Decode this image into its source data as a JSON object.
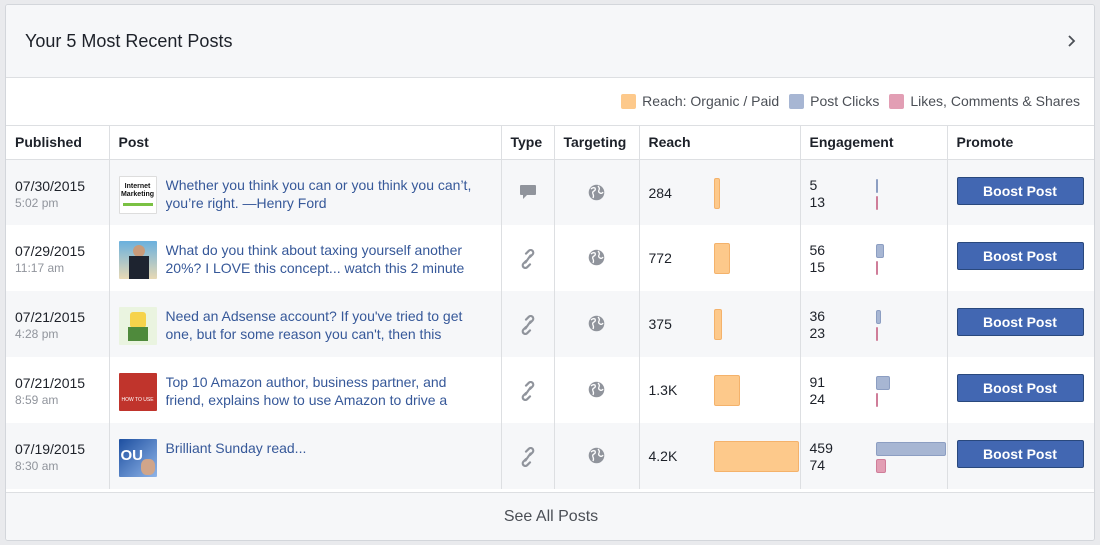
{
  "header": {
    "title": "Your 5 Most Recent Posts"
  },
  "legend": [
    {
      "label": "Reach: Organic / Paid",
      "color": "#fdc98b"
    },
    {
      "label": "Post Clicks",
      "color": "#a7b6d3"
    },
    {
      "label": "Likes, Comments & Shares",
      "color": "#e29eb4"
    }
  ],
  "columns": [
    "Published",
    "Post",
    "Type",
    "Targeting",
    "Reach",
    "Engagement",
    "Promote"
  ],
  "rows": [
    {
      "date": "07/30/2015",
      "time": "5:02 pm",
      "post": "Whether you think you can or you think you can’t, you’re right. —Henry Ford",
      "type": "status",
      "reach": "284",
      "clicks": "5",
      "likes": "13",
      "button": "Boost Post",
      "thumb_text": "Internet Marketing ...with Adam Booth"
    },
    {
      "date": "07/29/2015",
      "time": "11:17 am",
      "post": "What do you think about taxing yourself another 20%? I LOVE this concept... watch this 2 minute",
      "type": "link",
      "reach": "772",
      "clicks": "56",
      "likes": "15",
      "button": "Boost Post"
    },
    {
      "date": "07/21/2015",
      "time": "4:28 pm",
      "post": "Need an Adsense account? If you've tried to get one, but for some reason you can't, then this",
      "type": "link",
      "reach": "375",
      "clicks": "36",
      "likes": "23",
      "button": "Boost Post"
    },
    {
      "date": "07/21/2015",
      "time": "8:59 am",
      "post": "Top 10 Amazon author, business partner, and friend, explains how to use Amazon to drive a",
      "type": "link",
      "reach": "1.3K",
      "clicks": "91",
      "likes": "24",
      "button": "Boost Post",
      "thumb_text": "HOW TO USE"
    },
    {
      "date": "07/19/2015",
      "time": "8:30 am",
      "post": "Brilliant Sunday read...",
      "type": "link",
      "reach": "4.2K",
      "clicks": "459",
      "likes": "74",
      "button": "Boost Post",
      "thumb_text": "OU"
    }
  ],
  "bars": {
    "reach_fraction": [
      0.068,
      0.184,
      0.089,
      0.31,
      1.0
    ],
    "clicks_fraction": [
      0.004,
      0.115,
      0.074,
      0.198,
      1.0
    ],
    "likes_fraction": [
      0.015,
      0.016,
      0.03,
      0.033,
      0.14
    ]
  },
  "footer": {
    "label": "See All Posts"
  }
}
